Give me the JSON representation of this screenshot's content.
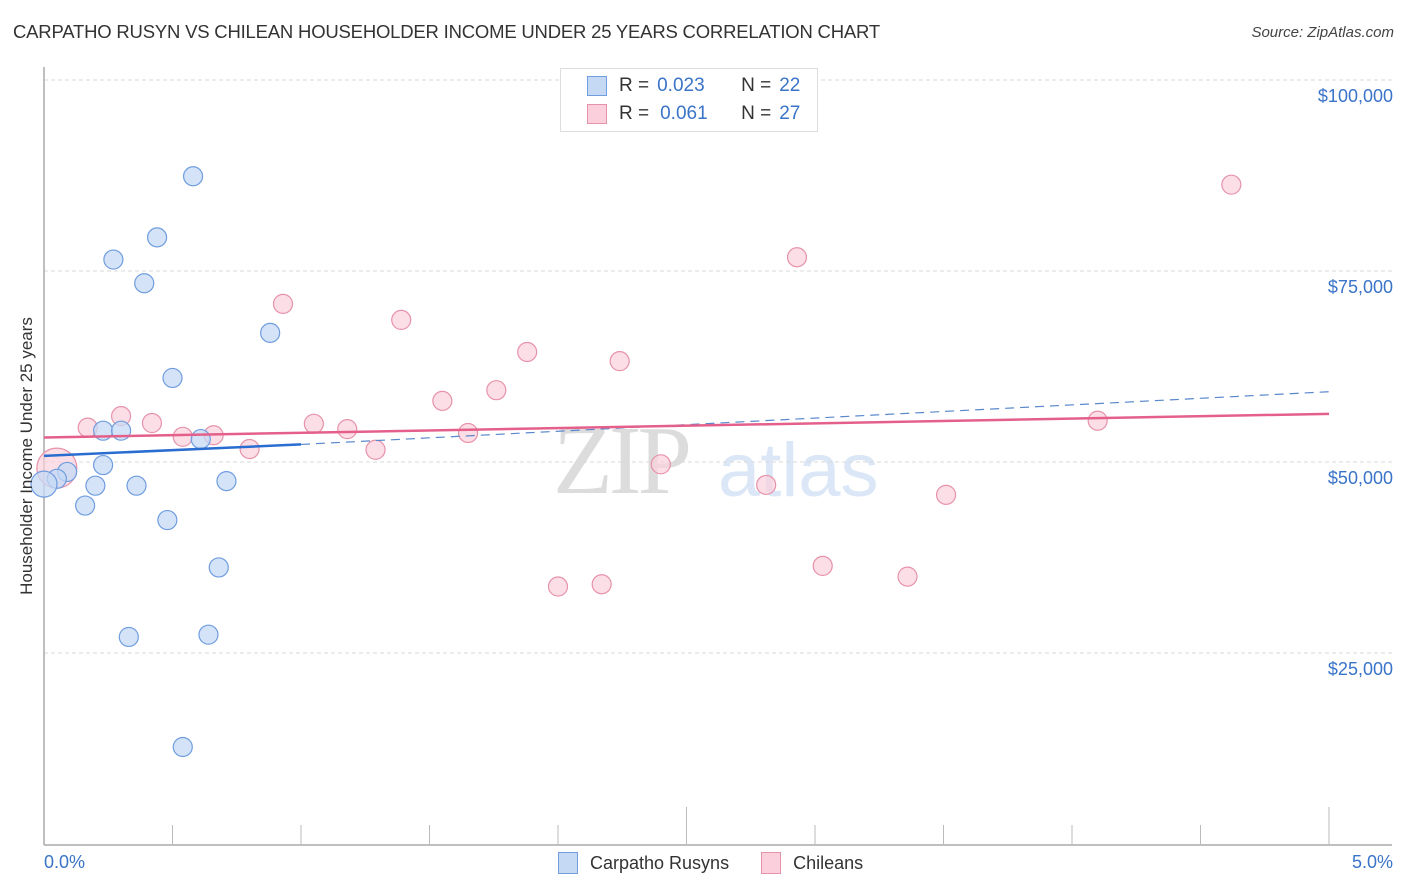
{
  "header": {
    "title": "CARPATHO RUSYN VS CHILEAN HOUSEHOLDER INCOME UNDER 25 YEARS CORRELATION CHART",
    "source": "Source: ZipAtlas.com"
  },
  "axes": {
    "ylabel": "Householder Income Under 25 years",
    "yticks": [
      "$100,000",
      "$75,000",
      "$50,000",
      "$25,000"
    ],
    "xticks": [
      "0.0%",
      "5.0%"
    ]
  },
  "legend": {
    "rows": [
      {
        "r_label": "R =",
        "r_value": "0.023",
        "n_label": "N =",
        "n_value": "22"
      },
      {
        "r_label": "R =",
        "r_value": "0.061",
        "n_label": "N =",
        "n_value": "27"
      }
    ],
    "bottom": [
      "Carpatho Rusyns",
      "Chileans"
    ]
  },
  "watermark": {
    "zip": "ZIP",
    "atlas": "atlas"
  },
  "colors": {
    "blue_fill": "#c5d9f5",
    "blue_stroke": "#6f9ddf",
    "blue_line": "#2a6dd0",
    "pink_fill": "#fbd0dc",
    "pink_stroke": "#e792ab",
    "pink_line": "#e4608a",
    "tick_text": "#3a74c8"
  },
  "chart_data": {
    "type": "scatter",
    "title": "CARPATHO RUSYN VS CHILEAN HOUSEHOLDER INCOME UNDER 25 YEARS CORRELATION CHART",
    "xlabel": "",
    "ylabel": "Householder Income Under 25 years",
    "xlim": [
      0,
      5.0
    ],
    "ylim": [
      0,
      105000
    ],
    "x_unit": "%",
    "grid": true,
    "legend_position": "top-center and bottom",
    "series": [
      {
        "name": "Carpatho Rusyns",
        "R": 0.023,
        "N": 22,
        "color": "#6f9ddf",
        "points": [
          [
            0.58,
            87400
          ],
          [
            0.44,
            79400
          ],
          [
            0.27,
            76500
          ],
          [
            0.39,
            73400
          ],
          [
            0.88,
            66900
          ],
          [
            0.5,
            61000
          ],
          [
            0.23,
            54100
          ],
          [
            0.3,
            54100
          ],
          [
            0.61,
            53000
          ],
          [
            0.23,
            49600
          ],
          [
            0.09,
            48700
          ],
          [
            0.05,
            47800
          ],
          [
            0.0,
            47100
          ],
          [
            0.2,
            46900
          ],
          [
            0.36,
            46900
          ],
          [
            0.71,
            47500
          ],
          [
            0.16,
            44300
          ],
          [
            0.48,
            42400
          ],
          [
            0.68,
            36200
          ],
          [
            0.33,
            27100
          ],
          [
            0.64,
            27400
          ],
          [
            0.54,
            12700
          ]
        ],
        "trend": {
          "x": [
            0.0,
            1.0
          ],
          "y": [
            50800,
            52300
          ],
          "dashed_extension_to": [
            5.0,
            59200
          ]
        }
      },
      {
        "name": "Chileans",
        "R": 0.061,
        "N": 27,
        "color": "#e792ab",
        "points": [
          [
            4.62,
            86300
          ],
          [
            2.93,
            76800
          ],
          [
            0.93,
            70700
          ],
          [
            1.39,
            68600
          ],
          [
            1.88,
            64400
          ],
          [
            2.24,
            63200
          ],
          [
            1.76,
            59400
          ],
          [
            1.55,
            58000
          ],
          [
            0.3,
            56000
          ],
          [
            0.42,
            55100
          ],
          [
            1.05,
            55000
          ],
          [
            4.1,
            55400
          ],
          [
            0.17,
            54500
          ],
          [
            1.18,
            54300
          ],
          [
            0.54,
            53300
          ],
          [
            0.66,
            53500
          ],
          [
            1.65,
            53800
          ],
          [
            0.8,
            51700
          ],
          [
            1.29,
            51600
          ],
          [
            0.05,
            49200
          ],
          [
            2.4,
            49700
          ],
          [
            2.81,
            47000
          ],
          [
            3.51,
            45700
          ],
          [
            3.03,
            36400
          ],
          [
            3.36,
            35000
          ],
          [
            2.0,
            33700
          ],
          [
            2.17,
            34000
          ]
        ],
        "trend": {
          "x": [
            0.0,
            5.0
          ],
          "y": [
            53200,
            56300
          ]
        }
      }
    ]
  }
}
